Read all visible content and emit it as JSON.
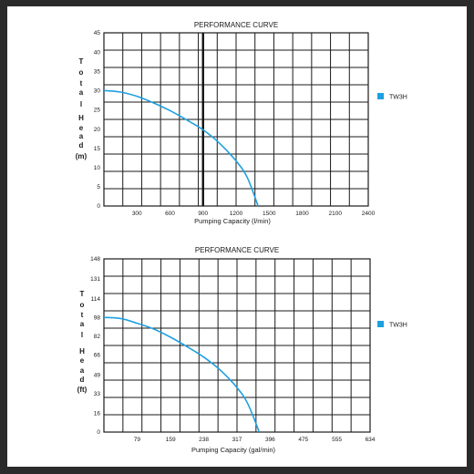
{
  "chart_data": [
    {
      "type": "line",
      "title": "PERFORMANCE CURVE",
      "xlabel": "Pumping Capacity (l/min)",
      "ylabel": "Total Head (m)",
      "ylabel_chars": [
        "T",
        "o",
        "t",
        "a",
        "l",
        "",
        "H",
        "e",
        "a",
        "d",
        "(m)"
      ],
      "xlim": [
        0,
        2400
      ],
      "ylim": [
        0,
        45
      ],
      "x_ticks": [
        "300",
        "600",
        "900",
        "1200",
        "1500",
        "1800",
        "2100",
        "2400"
      ],
      "x_tick_values": [
        300,
        600,
        900,
        1200,
        1500,
        1800,
        2100,
        2400
      ],
      "y_ticks": [
        "0",
        "5",
        "10",
        "15",
        "20",
        "25",
        "30",
        "35",
        "40",
        "45"
      ],
      "y_tick_values": [
        0,
        5,
        10,
        15,
        20,
        25,
        30,
        35,
        40,
        45
      ],
      "grid": true,
      "highlight_vline": 900,
      "legend_position": "right",
      "series": [
        {
          "name": "TW3H",
          "color": "#1ea0e0",
          "x": [
            0,
            150,
            300,
            450,
            600,
            750,
            900,
            1050,
            1200,
            1300,
            1400
          ],
          "y": [
            30,
            29.6,
            28.5,
            26.8,
            24.8,
            22.4,
            19.8,
            16.3,
            11.7,
            7.5,
            0
          ]
        }
      ]
    },
    {
      "type": "line",
      "title": "PERFORMANCE CURVE",
      "xlabel": "Pumping Capacity (gal/min)",
      "ylabel": "Total Head (ft)",
      "ylabel_chars": [
        "T",
        "o",
        "t",
        "a",
        "l",
        "",
        "H",
        "e",
        "a",
        "d",
        "(ft)"
      ],
      "xlim": [
        0,
        634
      ],
      "ylim": [
        0,
        148
      ],
      "x_ticks": [
        "79",
        "159",
        "238",
        "317",
        "396",
        "475",
        "555",
        "634"
      ],
      "x_tick_values": [
        79,
        159,
        238,
        317,
        396,
        475,
        555,
        634
      ],
      "y_ticks": [
        "0",
        "16",
        "33",
        "49",
        "66",
        "82",
        "98",
        "114",
        "131",
        "148"
      ],
      "y_tick_values": [
        0,
        16,
        33,
        49,
        66,
        82,
        98,
        114,
        131,
        148
      ],
      "grid": true,
      "legend_position": "right",
      "series": [
        {
          "name": "TW3H",
          "color": "#1ea0e0",
          "x": [
            0,
            40,
            79,
            119,
            159,
            198,
            238,
            277,
            317,
            343,
            370
          ],
          "y": [
            98,
            97,
            93,
            88,
            81,
            73,
            64,
            53,
            38,
            24,
            0
          ]
        }
      ]
    }
  ]
}
